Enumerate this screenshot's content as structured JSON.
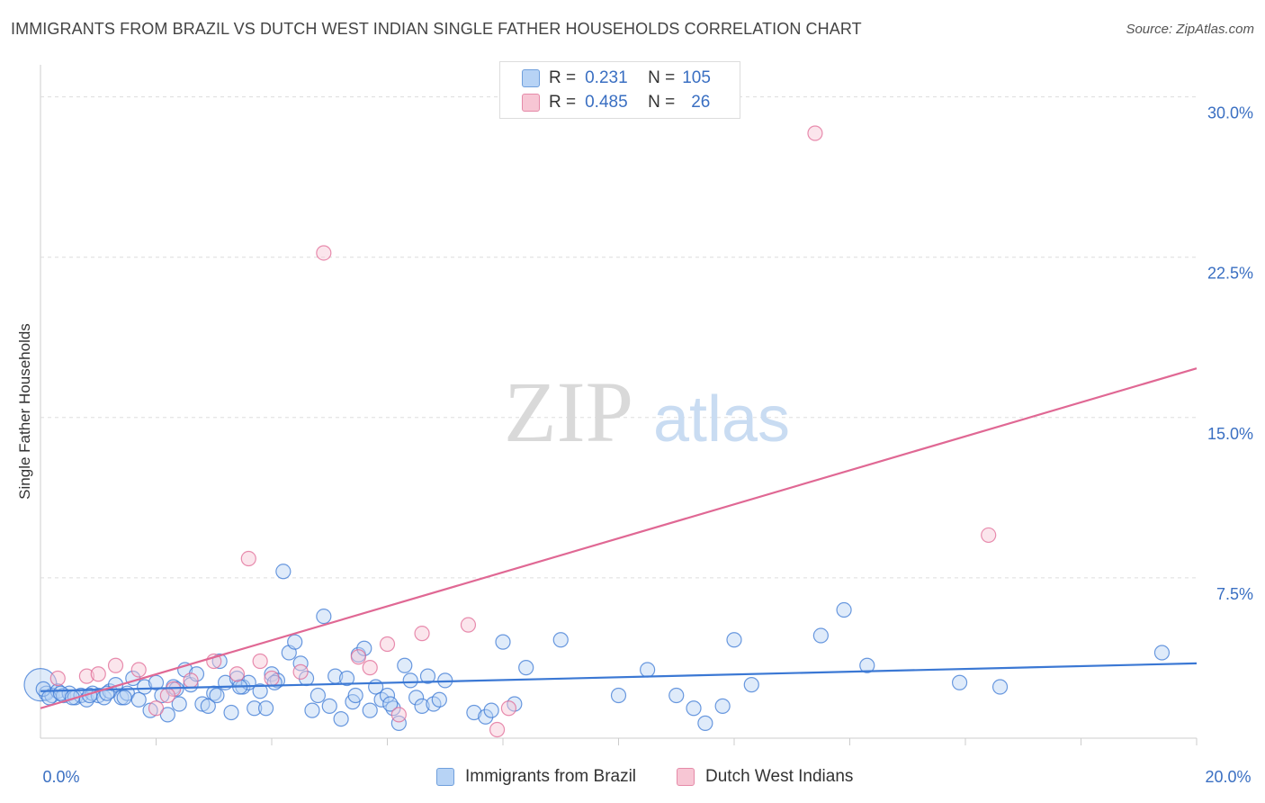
{
  "title": "IMMIGRANTS FROM BRAZIL VS DUTCH WEST INDIAN SINGLE FATHER HOUSEHOLDS CORRELATION CHART",
  "source": "Source: ZipAtlas.com",
  "watermark": {
    "zip": "ZIP",
    "atlas": "atlas"
  },
  "colors": {
    "blue": "#3b78d4",
    "blue_fill": "#b7d3f5",
    "pink": "#e06894",
    "pink_fill": "#f7c6d4",
    "tick_label": "#3a6fc2"
  },
  "legend": {
    "rows": [
      {
        "r_label": "R =",
        "r_value": "0.231",
        "n_label": "N =",
        "n_value": "105"
      },
      {
        "r_label": "R =",
        "r_value": "0.485",
        "n_label": "N =",
        "n_value": "26"
      }
    ]
  },
  "chart_data": {
    "type": "scatter",
    "ylabel": "Single Father Households",
    "xlim": [
      0,
      20
    ],
    "ylim": [
      0,
      31.5
    ],
    "x_tick_labels": [
      "0.0%",
      "20.0%"
    ],
    "y_ticks": [
      7.5,
      15.0,
      22.5,
      30.0
    ],
    "y_tick_labels": [
      "7.5%",
      "15.0%",
      "22.5%",
      "30.0%"
    ],
    "grid": true,
    "series": [
      {
        "name": "Immigrants from Brazil",
        "color": "#3b78d4",
        "fill": "#b7d3f5",
        "trend": {
          "x": [
            0,
            20
          ],
          "y": [
            2.2,
            3.5
          ]
        },
        "points": [
          [
            0.0,
            2.5
          ],
          [
            0.1,
            2.1
          ],
          [
            0.2,
            2.0
          ],
          [
            0.3,
            2.2
          ],
          [
            0.4,
            2.0
          ],
          [
            0.5,
            2.1
          ],
          [
            0.6,
            1.9
          ],
          [
            0.7,
            2.0
          ],
          [
            0.8,
            1.8
          ],
          [
            0.9,
            2.1
          ],
          [
            1.0,
            2.0
          ],
          [
            1.1,
            1.9
          ],
          [
            1.2,
            2.2
          ],
          [
            1.3,
            2.5
          ],
          [
            1.4,
            1.9
          ],
          [
            1.5,
            2.1
          ],
          [
            1.6,
            2.8
          ],
          [
            1.7,
            1.8
          ],
          [
            1.8,
            2.4
          ],
          [
            1.9,
            1.3
          ],
          [
            2.0,
            2.6
          ],
          [
            2.1,
            2.0
          ],
          [
            2.2,
            1.1
          ],
          [
            2.3,
            2.4
          ],
          [
            2.4,
            1.6
          ],
          [
            2.5,
            3.2
          ],
          [
            2.6,
            2.5
          ],
          [
            2.7,
            3.0
          ],
          [
            2.8,
            1.6
          ],
          [
            2.9,
            1.5
          ],
          [
            3.0,
            2.1
          ],
          [
            3.1,
            3.6
          ],
          [
            3.2,
            2.6
          ],
          [
            3.3,
            1.2
          ],
          [
            3.4,
            2.8
          ],
          [
            3.5,
            2.4
          ],
          [
            3.6,
            2.6
          ],
          [
            3.7,
            1.4
          ],
          [
            3.8,
            2.2
          ],
          [
            3.9,
            1.4
          ],
          [
            4.0,
            3.0
          ],
          [
            4.1,
            2.7
          ],
          [
            4.2,
            7.8
          ],
          [
            4.3,
            4.0
          ],
          [
            4.4,
            4.5
          ],
          [
            4.5,
            3.5
          ],
          [
            4.6,
            2.8
          ],
          [
            4.7,
            1.3
          ],
          [
            4.8,
            2.0
          ],
          [
            4.9,
            5.7
          ],
          [
            5.0,
            1.5
          ],
          [
            5.1,
            2.9
          ],
          [
            5.2,
            0.9
          ],
          [
            5.3,
            2.8
          ],
          [
            5.4,
            1.7
          ],
          [
            5.5,
            3.9
          ],
          [
            5.6,
            4.2
          ],
          [
            5.7,
            1.3
          ],
          [
            5.8,
            2.4
          ],
          [
            5.9,
            1.8
          ],
          [
            6.0,
            2.0
          ],
          [
            6.1,
            1.4
          ],
          [
            6.2,
            0.7
          ],
          [
            6.3,
            3.4
          ],
          [
            6.4,
            2.7
          ],
          [
            6.5,
            1.9
          ],
          [
            6.6,
            1.5
          ],
          [
            6.7,
            2.9
          ],
          [
            6.8,
            1.6
          ],
          [
            6.9,
            1.8
          ],
          [
            7.0,
            2.7
          ],
          [
            7.5,
            1.2
          ],
          [
            7.7,
            1.0
          ],
          [
            7.8,
            1.3
          ],
          [
            8.0,
            4.5
          ],
          [
            8.2,
            1.6
          ],
          [
            8.4,
            3.3
          ],
          [
            9.0,
            4.6
          ],
          [
            10.0,
            2.0
          ],
          [
            10.5,
            3.2
          ],
          [
            11.0,
            2.0
          ],
          [
            11.3,
            1.4
          ],
          [
            11.5,
            0.7
          ],
          [
            11.8,
            1.5
          ],
          [
            12.0,
            4.6
          ],
          [
            12.3,
            2.5
          ],
          [
            13.5,
            4.8
          ],
          [
            13.9,
            6.0
          ],
          [
            14.3,
            3.4
          ],
          [
            15.9,
            2.6
          ],
          [
            16.6,
            2.4
          ],
          [
            19.4,
            4.0
          ],
          [
            0.05,
            2.3
          ],
          [
            0.15,
            1.9
          ],
          [
            0.35,
            2.1
          ],
          [
            0.55,
            1.9
          ],
          [
            0.85,
            2.0
          ],
          [
            1.15,
            2.1
          ],
          [
            1.45,
            1.9
          ],
          [
            2.35,
            2.3
          ],
          [
            3.05,
            2.0
          ],
          [
            3.45,
            2.4
          ],
          [
            4.05,
            2.6
          ],
          [
            5.45,
            2.0
          ],
          [
            6.05,
            1.6
          ]
        ]
      },
      {
        "name": "Dutch West Indians",
        "color": "#e06894",
        "fill": "#f7c6d4",
        "trend": {
          "x": [
            0,
            20
          ],
          "y": [
            1.4,
            17.3
          ]
        },
        "points": [
          [
            0.3,
            2.8
          ],
          [
            0.8,
            2.9
          ],
          [
            1.0,
            3.0
          ],
          [
            1.3,
            3.4
          ],
          [
            1.7,
            3.2
          ],
          [
            2.0,
            1.4
          ],
          [
            2.3,
            2.3
          ],
          [
            2.6,
            2.7
          ],
          [
            3.0,
            3.6
          ],
          [
            3.4,
            3.0
          ],
          [
            3.6,
            8.4
          ],
          [
            3.8,
            3.6
          ],
          [
            4.0,
            2.8
          ],
          [
            4.5,
            3.1
          ],
          [
            4.9,
            22.7
          ],
          [
            5.5,
            3.8
          ],
          [
            5.7,
            3.3
          ],
          [
            6.0,
            4.4
          ],
          [
            6.2,
            1.1
          ],
          [
            6.6,
            4.9
          ],
          [
            7.4,
            5.3
          ],
          [
            7.9,
            0.4
          ],
          [
            8.1,
            1.4
          ],
          [
            13.4,
            28.3
          ],
          [
            16.4,
            9.5
          ],
          [
            2.2,
            2.0
          ]
        ]
      }
    ]
  },
  "bottom_legend": [
    "Immigrants from Brazil",
    "Dutch West Indians"
  ]
}
